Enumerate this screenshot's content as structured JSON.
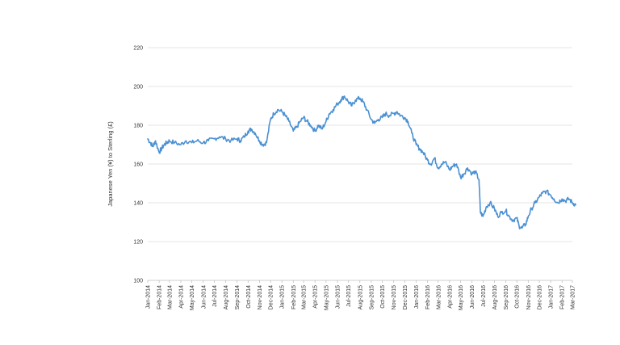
{
  "chart_data": {
    "type": "line",
    "ylabel": "Japanese Yen (¥) to Sterling (£)",
    "xlabel": "",
    "ylim": [
      100,
      220
    ],
    "yticks": [
      100,
      120,
      140,
      160,
      180,
      200,
      220
    ],
    "grid": true,
    "legend": "none",
    "color": "#4a90d2",
    "categories": [
      "Jan-2014",
      "Feb-2014",
      "Mar-2014",
      "Apr-2014",
      "May-2014",
      "Jun-2014",
      "Jul-2014",
      "Aug-2014",
      "Sep-2014",
      "Oct-2014",
      "Nov-2014",
      "Dec-2014",
      "Jan-2015",
      "Feb-2015",
      "Mar-2015",
      "Apr-2015",
      "May-2015",
      "Jun-2015",
      "Jul-2015",
      "Aug-2015",
      "Sep-2015",
      "Oct-2015",
      "Nov-2015",
      "Dec-2015",
      "Jan-2016",
      "Feb-2016",
      "Mar-2016",
      "Apr-2016",
      "May-2016",
      "Jun-2016",
      "Jul-2016",
      "Aug-2016",
      "Sep-2016",
      "Oct-2016",
      "Nov-2016",
      "Dec-2016",
      "Jan-2017",
      "Feb-2017",
      "Mar-2017"
    ],
    "series": [
      {
        "x": [
          "2014-01-01",
          "2014-01-08",
          "2014-01-15",
          "2014-01-22",
          "2014-02-01",
          "2014-02-08",
          "2014-02-15",
          "2014-02-22",
          "2014-03-01",
          "2014-03-15",
          "2014-04-01",
          "2014-04-15",
          "2014-05-01",
          "2014-05-15",
          "2014-06-01",
          "2014-06-15",
          "2014-07-01",
          "2014-07-15",
          "2014-08-01",
          "2014-08-15",
          "2014-09-01",
          "2014-09-10",
          "2014-09-20",
          "2014-10-01",
          "2014-10-10",
          "2014-10-20",
          "2014-11-01",
          "2014-11-10",
          "2014-11-20",
          "2014-12-01",
          "2014-12-10",
          "2014-12-20",
          "2015-01-01",
          "2015-01-10",
          "2015-01-20",
          "2015-02-01",
          "2015-02-10",
          "2015-02-20",
          "2015-03-01",
          "2015-03-10",
          "2015-03-20",
          "2015-04-01",
          "2015-04-10",
          "2015-04-20",
          "2015-05-01",
          "2015-05-10",
          "2015-05-20",
          "2015-06-01",
          "2015-06-10",
          "2015-06-20",
          "2015-07-01",
          "2015-07-10",
          "2015-07-20",
          "2015-08-01",
          "2015-08-10",
          "2015-08-20",
          "2015-09-01",
          "2015-09-10",
          "2015-09-20",
          "2015-10-01",
          "2015-10-10",
          "2015-10-20",
          "2015-11-01",
          "2015-11-10",
          "2015-11-20",
          "2015-12-01",
          "2015-12-10",
          "2015-12-20",
          "2016-01-01",
          "2016-01-10",
          "2016-01-20",
          "2016-02-01",
          "2016-02-10",
          "2016-02-20",
          "2016-03-01",
          "2016-03-10",
          "2016-03-20",
          "2016-04-01",
          "2016-04-10",
          "2016-04-20",
          "2016-05-01",
          "2016-05-10",
          "2016-05-20",
          "2016-06-01",
          "2016-06-10",
          "2016-06-20",
          "2016-06-24",
          "2016-07-01",
          "2016-07-10",
          "2016-07-20",
          "2016-08-01",
          "2016-08-10",
          "2016-08-20",
          "2016-09-01",
          "2016-09-10",
          "2016-09-20",
          "2016-10-01",
          "2016-10-07",
          "2016-10-15",
          "2016-10-25",
          "2016-11-01",
          "2016-11-10",
          "2016-11-20",
          "2016-12-01",
          "2016-12-10",
          "2016-12-20",
          "2017-01-01",
          "2017-01-10",
          "2017-01-20",
          "2017-02-01",
          "2017-02-10",
          "2017-02-20",
          "2017-03-01",
          "2017-03-10"
        ],
        "values": [
          173,
          171,
          169,
          172,
          166,
          168,
          170,
          171,
          172,
          171,
          170,
          172,
          171,
          172,
          171,
          172,
          173,
          174,
          173,
          172,
          173,
          172,
          174,
          177,
          178,
          176,
          172,
          170,
          171,
          183,
          186,
          188,
          187,
          185,
          182,
          177,
          179,
          182,
          184,
          182,
          180,
          177,
          180,
          178,
          182,
          186,
          188,
          191,
          193,
          195,
          192,
          190,
          193,
          194,
          192,
          188,
          183,
          181,
          183,
          184,
          186,
          185,
          186,
          187,
          185,
          184,
          182,
          176,
          170,
          168,
          166,
          162,
          160,
          163,
          158,
          160,
          161,
          157,
          159,
          160,
          153,
          155,
          158,
          155,
          156,
          152,
          135,
          133,
          138,
          140,
          137,
          133,
          135,
          136,
          133,
          131,
          132,
          128,
          127,
          129,
          133,
          137,
          140,
          143,
          145,
          146,
          144,
          142,
          140,
          142,
          141,
          142,
          140,
          139
        ]
      }
    ]
  }
}
